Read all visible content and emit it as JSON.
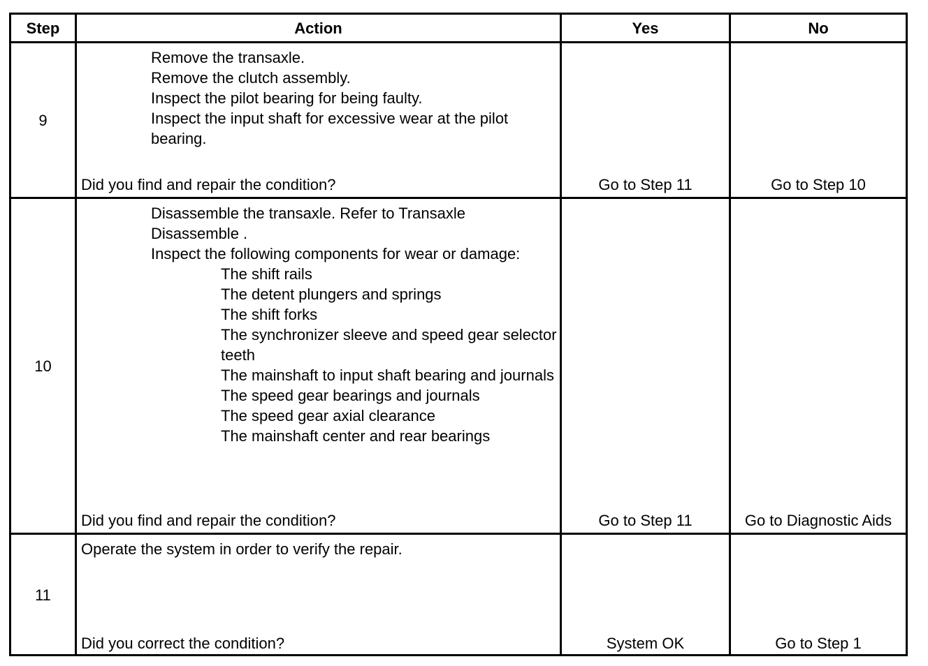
{
  "headers": {
    "step": "Step",
    "action": "Action",
    "yes": "Yes",
    "no": "No"
  },
  "rows": [
    {
      "step": "9",
      "items": [
        {
          "level": 1,
          "text": "Remove the transaxle."
        },
        {
          "level": 1,
          "text": "Remove the clutch assembly."
        },
        {
          "level": 1,
          "text": "Inspect the pilot bearing for being faulty."
        },
        {
          "level": 1,
          "text": "Inspect the input shaft for excessive wear at the pilot bearing."
        }
      ],
      "question": "Did you find and repair the condition?",
      "yes": "Go to Step 11",
      "no": "Go to Step 10"
    },
    {
      "step": "10",
      "items": [
        {
          "level": 1,
          "text": "Disassemble the transaxle. Refer to Transaxle Disassemble ."
        },
        {
          "level": 1,
          "text": "Inspect the following components for wear or damage:"
        },
        {
          "level": 2,
          "text": "The shift rails"
        },
        {
          "level": 2,
          "text": "The detent plungers and springs"
        },
        {
          "level": 2,
          "text": "The shift forks"
        },
        {
          "level": 2,
          "text": "The synchronizer sleeve and speed gear selector teeth"
        },
        {
          "level": 2,
          "text": "The mainshaft to input shaft bearing and journals"
        },
        {
          "level": 2,
          "text": "The speed gear bearings and journals"
        },
        {
          "level": 2,
          "text": "The speed gear axial clearance"
        },
        {
          "level": 2,
          "text": "The mainshaft center and rear bearings"
        }
      ],
      "question": "Did you find and repair the condition?",
      "yes": "Go to Step 11",
      "no": "Go to Diagnostic Aids"
    },
    {
      "step": "11",
      "items": [
        {
          "level": 0,
          "text": "Operate the system in order to verify the repair."
        }
      ],
      "question": "Did you correct the condition?",
      "yes": "System OK",
      "no": "Go to Step 1"
    }
  ]
}
